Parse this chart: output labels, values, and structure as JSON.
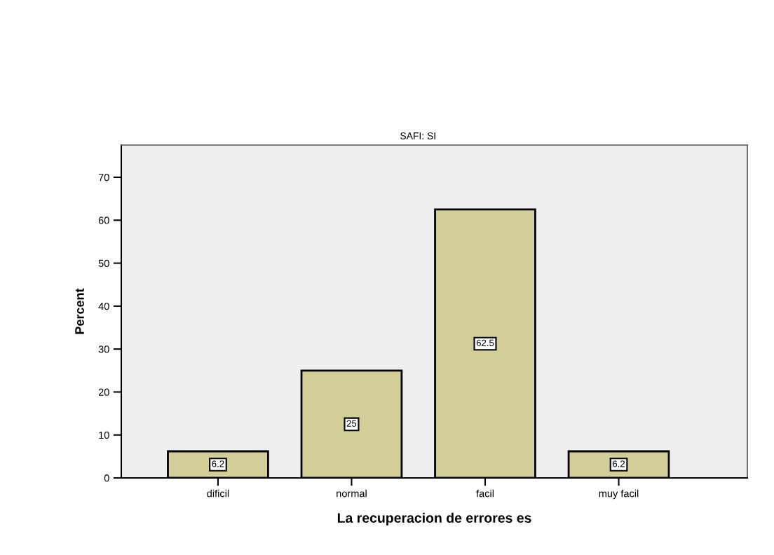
{
  "chart_data": {
    "type": "bar",
    "title": "SAFI: SI",
    "xlabel": "La recuperacion de errores es",
    "ylabel": "Percent",
    "categories": [
      "dificil",
      "normal",
      "facil",
      "muy facil"
    ],
    "values": [
      6.2,
      25,
      62.5,
      6.2
    ],
    "color": "#d3cd98",
    "ylim": [
      0,
      77.5
    ],
    "yticks": [
      0,
      10,
      20,
      30,
      40,
      50,
      60,
      70
    ],
    "data_labels": true,
    "grid": false,
    "legend": false
  }
}
